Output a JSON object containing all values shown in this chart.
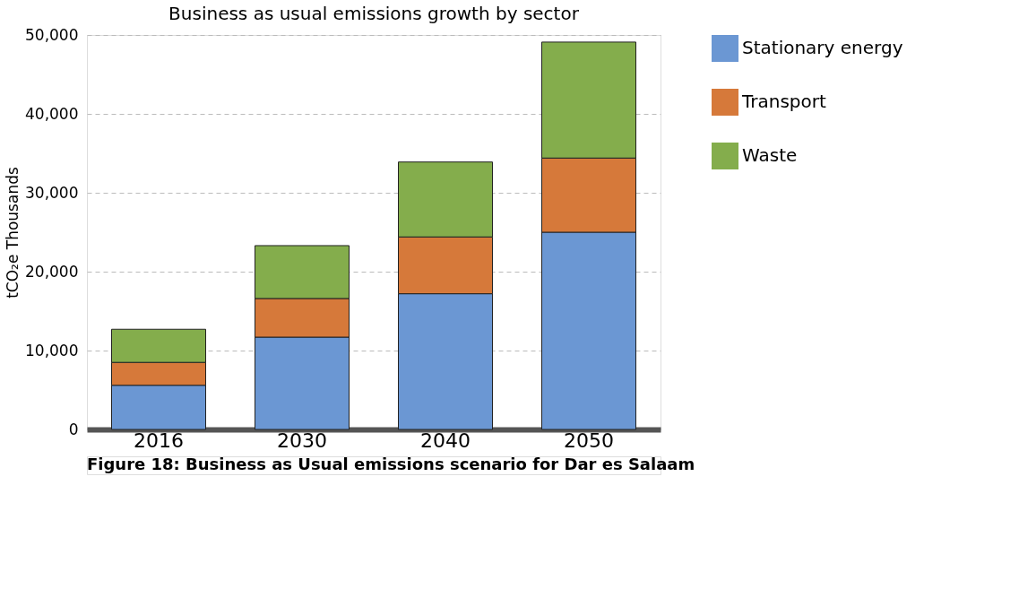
{
  "chart_data": {
    "type": "bar",
    "title": "Business as usual emissions growth by sector",
    "ylabel": "tCO₂e Thousands",
    "categories": [
      "2016",
      "2030",
      "2040",
      "2050"
    ],
    "stacked": true,
    "series": [
      {
        "name": "Stationary energy",
        "color": "#6b97d3",
        "values": [
          5600,
          11700,
          17200,
          25000
        ]
      },
      {
        "name": "Transport",
        "color": "#d6793a",
        "values": [
          2900,
          4900,
          7200,
          9400
        ]
      },
      {
        "name": "Waste",
        "color": "#84ad4c",
        "values": [
          4200,
          6700,
          9500,
          14700
        ]
      }
    ],
    "ylim": [
      0,
      50000
    ],
    "yticks": [
      0,
      {
        "value": 10000,
        "label": "10,000"
      },
      {
        "value": 20000,
        "label": "20,000"
      },
      {
        "value": 30000,
        "label": "30,000"
      },
      {
        "value": 40000,
        "label": "40,000"
      },
      {
        "value": 50000,
        "label": "50,000"
      }
    ],
    "grid": "y",
    "legend": "right",
    "annotations": [
      "Figure 18: Business as Usual emissions scenario for Dar es Salaam"
    ]
  }
}
